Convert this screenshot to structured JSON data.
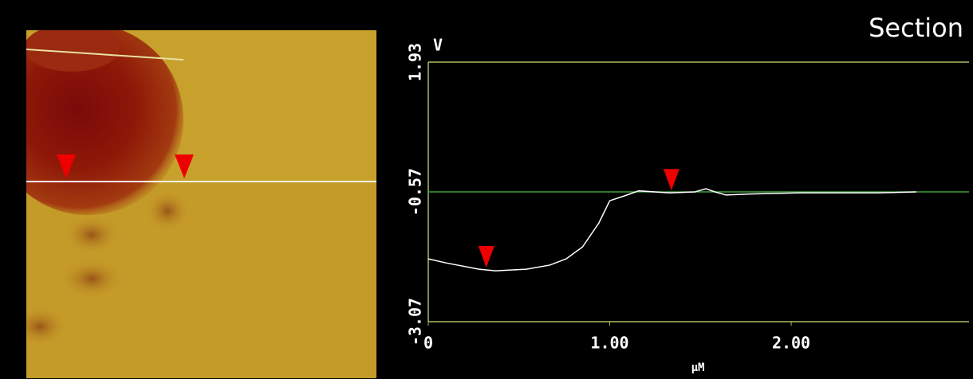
{
  "chart_data": {
    "type": "line",
    "title": "Section",
    "ylabel": "V",
    "xlabel": "µM",
    "xlim": [
      0,
      2.98
    ],
    "ylim": [
      -3.07,
      1.93
    ],
    "xticks": [
      0,
      {
        "value": 1,
        "label": "1.00"
      },
      {
        "value": 2,
        "label": "2.00"
      }
    ],
    "yticks": [
      -3.07,
      -0.57,
      1.93
    ],
    "grid": true,
    "grid_color": "#3f9f3f",
    "frame_color": "#a8c060",
    "marker_color": "#ee0000",
    "markers_x": [
      0.32,
      1.34
    ],
    "series": [
      {
        "color": "#ffffff",
        "x": [
          0,
          0.1,
          0.28,
          0.37,
          0.54,
          0.67,
          0.76,
          0.85,
          0.94,
          1.0,
          1.07,
          1.16,
          1.33,
          1.47,
          1.53,
          1.58,
          1.64,
          1.78,
          2.04,
          2.48,
          2.69
        ],
        "values": [
          -1.86,
          -1.94,
          -2.06,
          -2.09,
          -2.06,
          -1.98,
          -1.86,
          -1.63,
          -1.17,
          -0.74,
          -0.66,
          -0.55,
          -0.59,
          -0.57,
          -0.51,
          -0.57,
          -0.63,
          -0.61,
          -0.59,
          -0.59,
          -0.57
        ]
      }
    ]
  }
}
